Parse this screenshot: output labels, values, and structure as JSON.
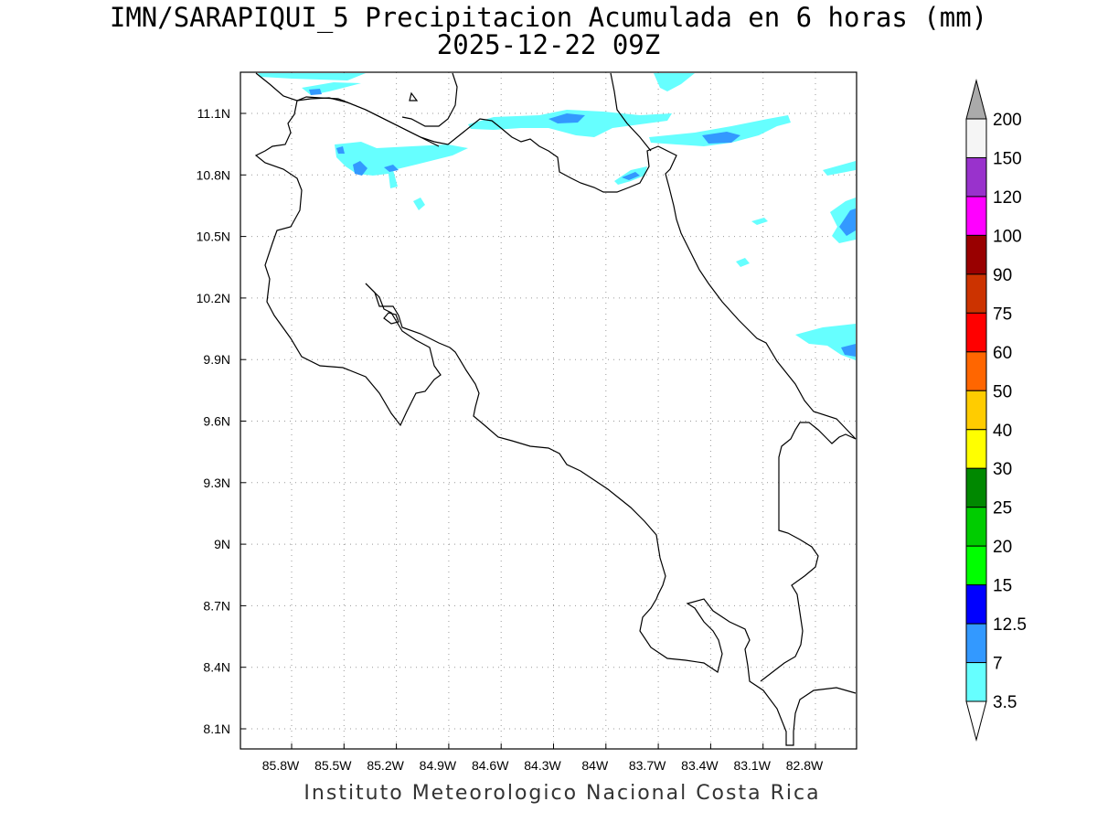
{
  "title": {
    "line1": "IMN/SARAPIQUI_5 Precipitacion Acumulada en 6 horas (mm)",
    "line2": "2025-12-22 09Z"
  },
  "footer": "Instituto Meteorologico Nacional Costa Rica",
  "map": {
    "lon_range": [
      -85.98,
      -82.55
    ],
    "lat_range": [
      8.0,
      11.3
    ],
    "lon_ticks": [
      "85.8W",
      "85.5W",
      "85.2W",
      "84.9W",
      "84.6W",
      "84.3W",
      "84W",
      "83.7W",
      "83.4W",
      "83.1W",
      "82.8W"
    ],
    "lat_ticks": [
      "11.1N",
      "10.8N",
      "10.5N",
      "10.2N",
      "9.9N",
      "9.6N",
      "9.3N",
      "9N",
      "8.7N",
      "8.4N",
      "8.1N"
    ],
    "grid": true
  },
  "colorbar": {
    "labels": [
      "200",
      "150",
      "120",
      "100",
      "90",
      "75",
      "60",
      "50",
      "40",
      "30",
      "25",
      "20",
      "15",
      "12.5",
      "7",
      "3.5"
    ],
    "colors": [
      "#f5f5f5",
      "#9932cc",
      "#ff00ff",
      "#990000",
      "#cc3300",
      "#ff0000",
      "#ff6600",
      "#ffcc00",
      "#ffff00",
      "#008800",
      "#00cc00",
      "#00ff00",
      "#0000ff",
      "#3399ff",
      "#66ffff"
    ],
    "top_arrow_color": "#aaaaaa",
    "bottom_arrow_color": "#ffffff"
  },
  "precip_colors": {
    "light": "#66ffff",
    "medium": "#3399ff"
  }
}
